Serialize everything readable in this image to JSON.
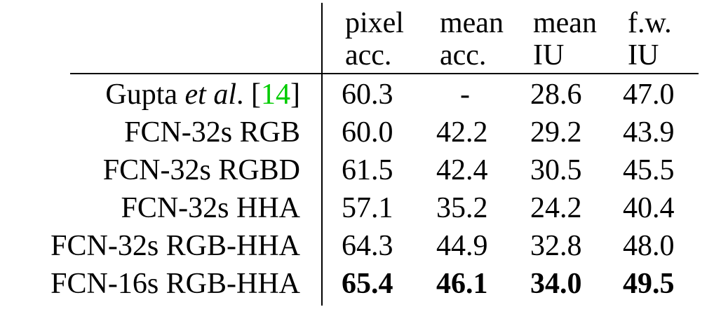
{
  "header": {
    "line1": [
      "pixel",
      "mean",
      "mean",
      "f.w."
    ],
    "line2": [
      "acc.",
      "acc.",
      "IU",
      "IU"
    ]
  },
  "rows": [
    {
      "label_prefix": "Gupta ",
      "label_italic": "et al",
      "label_suffix": ". [",
      "citation": "14",
      "label_end": "]",
      "values": [
        "60.3",
        "-",
        "28.6",
        "47.0"
      ],
      "bold": false
    },
    {
      "label": "FCN-32s RGB",
      "values": [
        "60.0",
        "42.2",
        "29.2",
        "43.9"
      ],
      "bold": false
    },
    {
      "label": "FCN-32s RGBD",
      "values": [
        "61.5",
        "42.4",
        "30.5",
        "45.5"
      ],
      "bold": false
    },
    {
      "label": "FCN-32s HHA",
      "values": [
        "57.1",
        "35.2",
        "24.2",
        "40.4"
      ],
      "bold": false
    },
    {
      "label": "FCN-32s RGB-HHA",
      "values": [
        "64.3",
        "44.9",
        "32.8",
        "48.0"
      ],
      "bold": false
    },
    {
      "label": "FCN-16s RGB-HHA",
      "values": [
        "65.4",
        "46.1",
        "34.0",
        "49.5"
      ],
      "bold": true
    }
  ],
  "colors": {
    "citation": "#00cc00",
    "text": "#000000"
  }
}
